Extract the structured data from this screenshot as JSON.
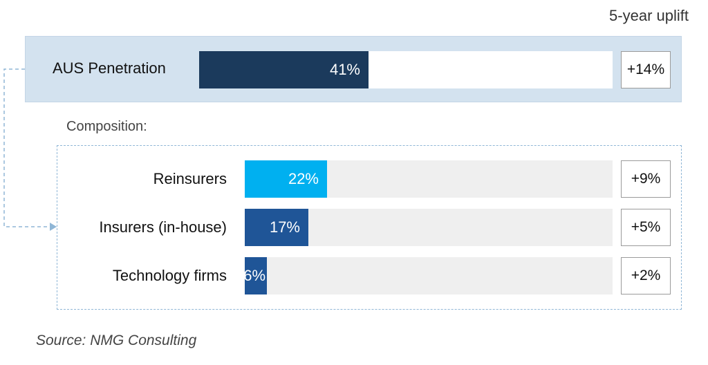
{
  "chart_data": {
    "type": "bar",
    "uplift_header": "5-year uplift",
    "scale_max": 100,
    "main": {
      "label": "AUS Penetration",
      "value": 41,
      "value_label": "41%",
      "uplift": "+14%",
      "color": "#1b3a5c"
    },
    "composition_title": "Composition:",
    "categories": [
      "Reinsurers",
      "Insurers (in-house)",
      "Technology firms"
    ],
    "values": [
      22,
      17,
      6
    ],
    "value_labels": [
      "22%",
      "17%",
      "6%"
    ],
    "uplifts": [
      "+9%",
      "+5%",
      "+2%"
    ],
    "colors": [
      "#00b0f0",
      "#1f5597",
      "#1f5597"
    ],
    "source": "Source: NMG Consulting"
  }
}
